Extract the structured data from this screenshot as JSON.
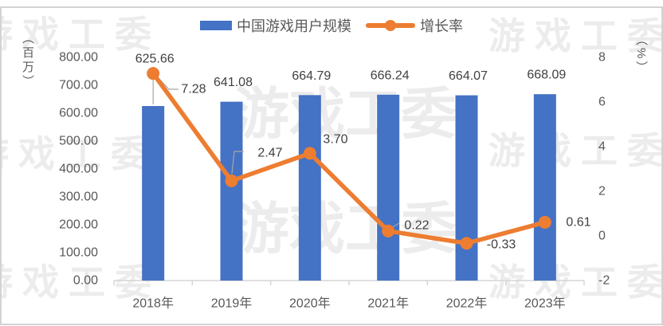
{
  "watermark": {
    "text": "游戏工委"
  },
  "legend": {
    "items": [
      {
        "label": "中国游戏用户规模"
      },
      {
        "label": "增长率"
      }
    ]
  },
  "chart_data": {
    "type": "bar+line",
    "categories": [
      "2018年",
      "2019年",
      "2020年",
      "2021年",
      "2022年",
      "2023年"
    ],
    "series": [
      {
        "name": "中国游戏用户规模",
        "type": "bar",
        "axis": "left",
        "color": "#4472C4",
        "values": [
          625.66,
          641.08,
          664.79,
          666.24,
          664.07,
          668.09
        ],
        "labels": [
          "625.66",
          "641.08",
          "664.79",
          "666.24",
          "664.07",
          "668.09"
        ]
      },
      {
        "name": "增长率",
        "type": "line",
        "axis": "right",
        "color": "#ED7D31",
        "values": [
          7.28,
          2.47,
          3.7,
          0.22,
          -0.33,
          0.61
        ],
        "labels": [
          "7.28",
          "2.47",
          "3.70",
          "0.22",
          "-0.33",
          "0.61"
        ]
      }
    ],
    "left_axis": {
      "title": "（百万）",
      "min": 0,
      "max": 800,
      "step": 100,
      "tick_labels": [
        "0.00",
        "100.00",
        "200.00",
        "300.00",
        "400.00",
        "500.00",
        "600.00",
        "700.00",
        "800.00"
      ]
    },
    "right_axis": {
      "title": "（%）",
      "min": -2,
      "max": 8,
      "step": 2,
      "tick_labels": [
        "-2",
        "0",
        "2",
        "4",
        "6",
        "8"
      ]
    },
    "grid": false,
    "legend_position": "top"
  },
  "colors": {
    "bar": "#4472C4",
    "line": "#ED7D31",
    "data_label": "#404040",
    "axis_text": "#595959",
    "axis_line": "#d6d6d6",
    "leader_line": "#a6a6a6",
    "watermark": "#ececec",
    "frame": "#d3d3d3"
  }
}
